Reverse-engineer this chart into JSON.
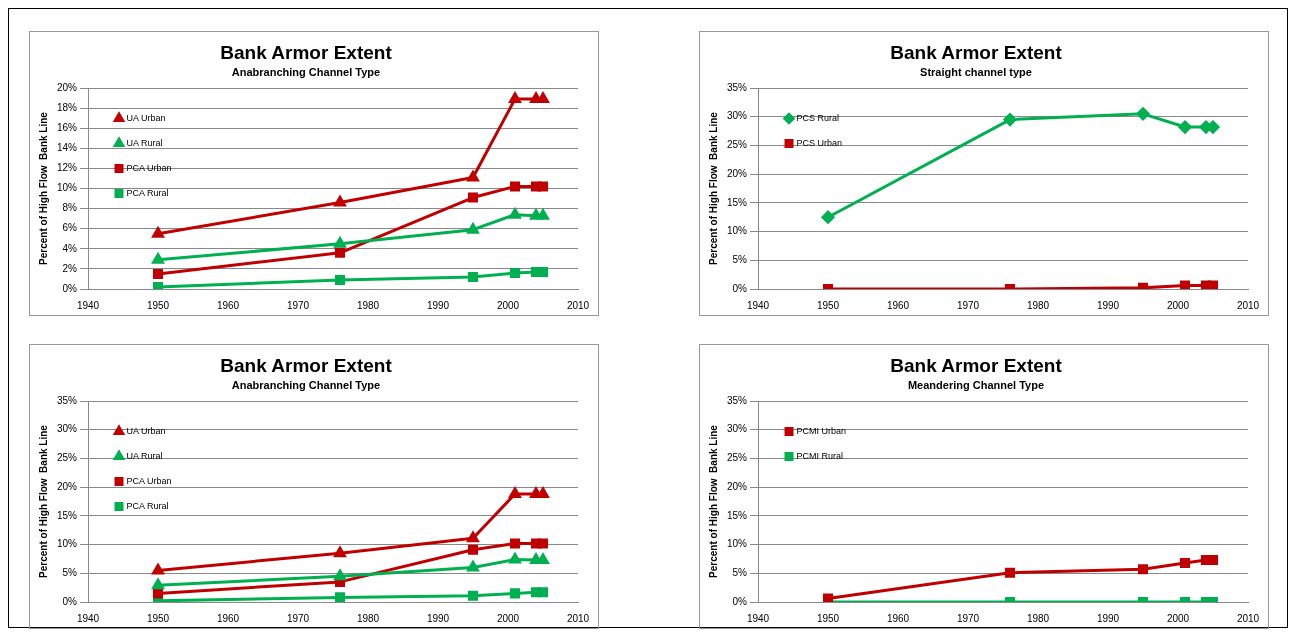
{
  "chart_data": [
    {
      "type": "line",
      "title": "Bank Armor Extent",
      "subtitle": "Anabranching Channel Type",
      "ylabel": "Percent of High Flow  Bank Line",
      "x": [
        1950,
        1976,
        1995,
        2001,
        2004,
        2005
      ],
      "xlim": [
        1940,
        2010
      ],
      "xticks": [
        1940,
        1950,
        1960,
        1970,
        1980,
        1990,
        2000,
        2010
      ],
      "ylim": [
        0,
        20
      ],
      "yticks": [
        {
          "value": 0,
          "label": "0%"
        },
        {
          "value": 2,
          "label": "2%"
        },
        {
          "value": 4,
          "label": "4%"
        },
        {
          "value": 6,
          "label": "6%"
        },
        {
          "value": 8,
          "label": "8%"
        },
        {
          "value": 10,
          "label": "10%"
        },
        {
          "value": 12,
          "label": "12%"
        },
        {
          "value": 14,
          "label": "14%"
        },
        {
          "value": 16,
          "label": "16%"
        },
        {
          "value": 18,
          "label": "18%"
        },
        {
          "value": 20,
          "label": "20%"
        }
      ],
      "grid": "y",
      "legend": "top left",
      "series": [
        {
          "name": "UA Urban",
          "color": "#c00000",
          "marker": "triangle",
          "values": [
            5.5,
            8.6,
            11.1,
            18.9,
            18.9,
            18.9
          ]
        },
        {
          "name": "UA Rural",
          "color": "#00b050",
          "marker": "triangle",
          "values": [
            2.9,
            4.5,
            5.9,
            7.4,
            7.3,
            7.3
          ]
        },
        {
          "name": "PCA Urban",
          "color": "#c00000",
          "marker": "square",
          "values": [
            1.5,
            3.6,
            9.1,
            10.2,
            10.2,
            10.2
          ]
        },
        {
          "name": "PCA Rural",
          "color": "#00b050",
          "marker": "square",
          "values": [
            0.2,
            0.9,
            1.2,
            1.6,
            1.7,
            1.7
          ]
        }
      ]
    },
    {
      "type": "line",
      "title": "Bank Armor Extent",
      "subtitle": "Straight channel type",
      "ylabel": "Percent of High Flow  Bank Line",
      "x": [
        1950,
        1976,
        1995,
        2001,
        2004,
        2005
      ],
      "xlim": [
        1940,
        2010
      ],
      "xticks": [
        1940,
        1950,
        1960,
        1970,
        1980,
        1990,
        2000,
        2010
      ],
      "ylim": [
        0,
        35
      ],
      "yticks": [
        {
          "value": 0,
          "label": "0%"
        },
        {
          "value": 5,
          "label": "5%"
        },
        {
          "value": 10,
          "label": "10%"
        },
        {
          "value": 15,
          "label": "15%"
        },
        {
          "value": 20,
          "label": "20%"
        },
        {
          "value": 25,
          "label": "25%"
        },
        {
          "value": 30,
          "label": "30%"
        },
        {
          "value": 35,
          "label": "35%"
        }
      ],
      "grid": "y",
      "legend": "top left",
      "series": [
        {
          "name": "PCS Rural",
          "color": "#00b050",
          "marker": "diamond",
          "values": [
            12.5,
            29.5,
            30.5,
            28.2,
            28.2,
            28.2
          ]
        },
        {
          "name": "PCS Urban",
          "color": "#c00000",
          "marker": "square",
          "values": [
            0,
            0,
            0.2,
            0.6,
            0.6,
            0.6
          ]
        }
      ]
    },
    {
      "type": "line",
      "title": "Bank Armor Extent",
      "subtitle": "Anabranching Channel Type",
      "ylabel": "Percent of High Flow  Bank Line",
      "x": [
        1950,
        1976,
        1995,
        2001,
        2004,
        2005
      ],
      "xlim": [
        1940,
        2010
      ],
      "xticks": [
        1940,
        1950,
        1960,
        1970,
        1980,
        1990,
        2000,
        2010
      ],
      "ylim": [
        0,
        35
      ],
      "yticks": [
        {
          "value": 0,
          "label": "0%"
        },
        {
          "value": 5,
          "label": "5%"
        },
        {
          "value": 10,
          "label": "10%"
        },
        {
          "value": 15,
          "label": "15%"
        },
        {
          "value": 20,
          "label": "20%"
        },
        {
          "value": 25,
          "label": "25%"
        },
        {
          "value": 30,
          "label": "30%"
        },
        {
          "value": 35,
          "label": "35%"
        }
      ],
      "grid": "y",
      "legend": "top left",
      "series": [
        {
          "name": "UA Urban",
          "color": "#c00000",
          "marker": "triangle",
          "values": [
            5.5,
            8.5,
            11.1,
            18.8,
            18.8,
            18.8
          ]
        },
        {
          "name": "UA Rural",
          "color": "#00b050",
          "marker": "triangle",
          "values": [
            2.9,
            4.5,
            6,
            7.4,
            7.3,
            7.3
          ]
        },
        {
          "name": "PCA Urban",
          "color": "#c00000",
          "marker": "square",
          "values": [
            1.5,
            3.5,
            9.1,
            10.2,
            10.2,
            10.2
          ]
        },
        {
          "name": "PCA Rural",
          "color": "#00b050",
          "marker": "square",
          "values": [
            0.2,
            0.8,
            1.1,
            1.5,
            1.7,
            1.7
          ]
        }
      ]
    },
    {
      "type": "line",
      "title": "Bank Armor Extent",
      "subtitle": "Meandering Channel Type",
      "ylabel": "Percent of High Flow  Bank Line",
      "x": [
        1950,
        1976,
        1995,
        2001,
        2004,
        2005
      ],
      "xlim": [
        1940,
        2010
      ],
      "xticks": [
        1940,
        1950,
        1960,
        1970,
        1980,
        1990,
        2000,
        2010
      ],
      "ylim": [
        0,
        35
      ],
      "yticks": [
        {
          "value": 0,
          "label": "0%"
        },
        {
          "value": 5,
          "label": "5%"
        },
        {
          "value": 10,
          "label": "10%"
        },
        {
          "value": 15,
          "label": "15%"
        },
        {
          "value": 20,
          "label": "20%"
        },
        {
          "value": 25,
          "label": "25%"
        },
        {
          "value": 30,
          "label": "30%"
        },
        {
          "value": 35,
          "label": "35%"
        }
      ],
      "grid": "y",
      "legend": "top left",
      "series": [
        {
          "name": "PCMI Urban",
          "color": "#c00000",
          "marker": "square",
          "values": [
            0.6,
            5.1,
            5.7,
            6.8,
            7.3,
            7.3
          ]
        },
        {
          "name": "PCMI Rural",
          "color": "#00b050",
          "marker": "square",
          "values": [
            0,
            0,
            0,
            0,
            0,
            0
          ]
        }
      ]
    }
  ]
}
